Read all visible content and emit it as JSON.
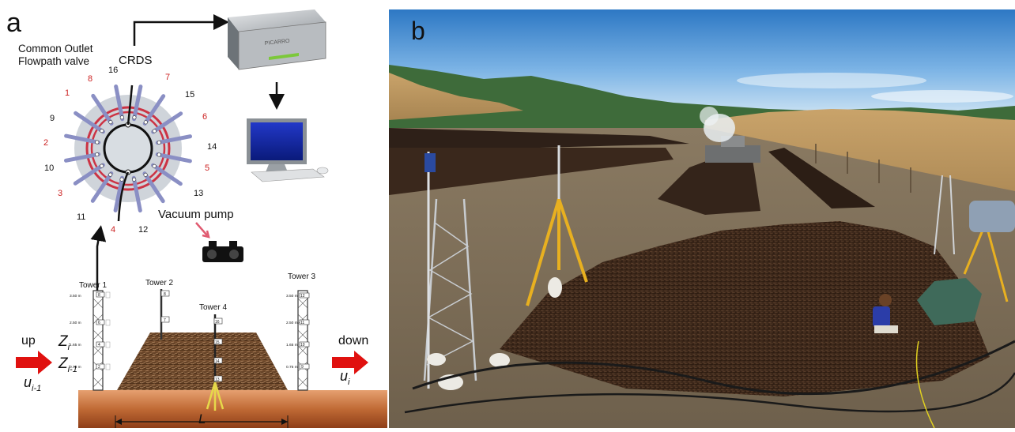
{
  "panel_a": {
    "letter": "a",
    "valve_title_line1": "Common Outlet",
    "valve_title_line2": "Flowpath valve",
    "crds_label": "CRDS",
    "analyzer_brand": "PICARRO",
    "vacuum_label": "Vacuum pump",
    "port_labels": {
      "p16": "16",
      "p8": "8",
      "p7": "7",
      "p15": "15",
      "p1": "1",
      "p6": "6",
      "p9": "9",
      "p14": "14",
      "p2": "2",
      "p5": "5",
      "p10": "10",
      "p3": "3",
      "p13": "13",
      "p11": "11",
      "p4": "4",
      "p12": "12"
    },
    "towers": {
      "t1": "Tower 1",
      "t2": "Tower 2",
      "t3": "Tower 3",
      "t4": "Tower 4"
    },
    "heights": {
      "h350": "3.50 m",
      "h250": "2.50 m",
      "h165": "1.65 m",
      "h075": "0.75 m"
    },
    "flow": {
      "up": "up",
      "down": "down",
      "zi": "Z",
      "zi_sub": "i",
      "zim1": "Z",
      "zim1_sub": "i-1",
      "uim1": "u",
      "uim1_sub": "i-1",
      "ui": "u",
      "ui_sub": "i",
      "L": "L"
    },
    "tags": {
      "t1_8": "8",
      "t1_6": "6",
      "t1_4": "4",
      "t1_2": "2",
      "t2_8": "8",
      "t2_7": "7",
      "t3_12": "12",
      "t3_11": "11",
      "t3_10": "10",
      "t3_9": "9",
      "t4_16": "16",
      "t4_15": "15",
      "t4_14": "14",
      "t4_13": "13"
    },
    "colors": {
      "red_port": "#cc2222",
      "arrow_red": "#e0110f",
      "soil_top": "#d58a55",
      "soil_bottom": "#9a4a1e"
    }
  },
  "panel_b": {
    "letter": "b"
  }
}
